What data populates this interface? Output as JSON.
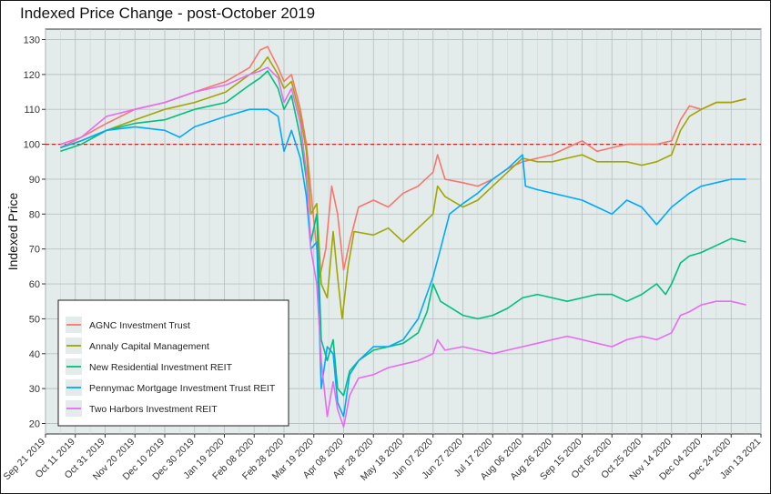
{
  "chart_data": {
    "type": "line",
    "title": "Indexed Price Change - post-October 2019",
    "xlabel": "",
    "ylabel": "Indexed Price",
    "ylim": [
      17,
      133
    ],
    "xlim": [
      "2019-09-21",
      "2021-01-13"
    ],
    "grid": true,
    "legend_position": "bottom-left",
    "reference_line": {
      "y": 100,
      "color": "#cc2222",
      "style": "dashed"
    },
    "y_ticks": [
      20,
      30,
      40,
      50,
      60,
      70,
      80,
      90,
      100,
      110,
      120,
      130
    ],
    "x_ticks": [
      "2019-09-21",
      "2019-10-11",
      "2019-10-31",
      "2019-11-20",
      "2019-12-10",
      "2019-12-30",
      "2020-01-19",
      "2020-02-08",
      "2020-02-28",
      "2020-03-19",
      "2020-04-08",
      "2020-04-28",
      "2020-05-18",
      "2020-06-07",
      "2020-06-27",
      "2020-07-17",
      "2020-08-06",
      "2020-08-26",
      "2020-09-15",
      "2020-10-05",
      "2020-10-25",
      "2020-11-14",
      "2020-12-04",
      "2020-12-24",
      "2021-01-13"
    ],
    "x_tick_labels": [
      "Sep 21 2019",
      "Oct 11 2019",
      "Oct 31 2019",
      "Nov 20 2019",
      "Dec 10 2019",
      "Dec 30 2019",
      "Jan 19 2020",
      "Feb 08 2020",
      "Feb 28 2020",
      "Mar 19 2020",
      "Apr 08 2020",
      "Apr 28 2020",
      "May 18 2020",
      "Jun 07 2020",
      "Jun 27 2020",
      "Jul 17 2020",
      "Aug 06 2020",
      "Aug 26 2020",
      "Sep 15 2020",
      "Oct 05 2020",
      "Oct 25 2020",
      "Nov 14 2020",
      "Dec 04 2020",
      "Dec 24 2020",
      "Jan 13 2021"
    ],
    "series": [
      {
        "name": "AGNC Investment Trust",
        "color": "#f8766d",
        "points": [
          [
            "2019-10-01",
            99
          ],
          [
            "2019-10-15",
            102
          ],
          [
            "2019-11-01",
            106
          ],
          [
            "2019-11-20",
            110
          ],
          [
            "2019-12-10",
            112
          ],
          [
            "2019-12-30",
            115
          ],
          [
            "2020-01-20",
            118
          ],
          [
            "2020-02-05",
            122
          ],
          [
            "2020-02-12",
            127
          ],
          [
            "2020-02-17",
            128
          ],
          [
            "2020-02-24",
            122
          ],
          [
            "2020-02-28",
            118
          ],
          [
            "2020-03-04",
            120
          ],
          [
            "2020-03-10",
            110
          ],
          [
            "2020-03-14",
            100
          ],
          [
            "2020-03-19",
            78
          ],
          [
            "2020-03-23",
            62
          ],
          [
            "2020-03-27",
            70
          ],
          [
            "2020-03-31",
            88
          ],
          [
            "2020-04-04",
            80
          ],
          [
            "2020-04-08",
            64
          ],
          [
            "2020-04-12",
            72
          ],
          [
            "2020-04-18",
            82
          ],
          [
            "2020-04-28",
            84
          ],
          [
            "2020-05-08",
            82
          ],
          [
            "2020-05-18",
            86
          ],
          [
            "2020-05-28",
            88
          ],
          [
            "2020-06-07",
            92
          ],
          [
            "2020-06-10",
            97
          ],
          [
            "2020-06-15",
            90
          ],
          [
            "2020-06-27",
            89
          ],
          [
            "2020-07-07",
            88
          ],
          [
            "2020-07-17",
            90
          ],
          [
            "2020-07-27",
            93
          ],
          [
            "2020-08-06",
            95
          ],
          [
            "2020-08-16",
            96
          ],
          [
            "2020-08-26",
            97
          ],
          [
            "2020-09-05",
            99
          ],
          [
            "2020-09-15",
            101
          ],
          [
            "2020-09-25",
            98
          ],
          [
            "2020-10-05",
            99
          ],
          [
            "2020-10-15",
            100
          ],
          [
            "2020-10-25",
            100
          ],
          [
            "2020-11-04",
            100
          ],
          [
            "2020-11-14",
            101
          ],
          [
            "2020-11-20",
            107
          ],
          [
            "2020-11-26",
            111
          ],
          [
            "2020-12-04",
            110
          ],
          [
            "2020-12-14",
            112
          ],
          [
            "2020-12-24",
            112
          ],
          [
            "2021-01-03",
            113
          ]
        ]
      },
      {
        "name": "Annaly Capital Management",
        "color": "#a3a500",
        "points": [
          [
            "2019-10-01",
            99
          ],
          [
            "2019-10-15",
            101
          ],
          [
            "2019-11-01",
            104
          ],
          [
            "2019-11-20",
            107
          ],
          [
            "2019-12-10",
            110
          ],
          [
            "2019-12-30",
            112
          ],
          [
            "2020-01-20",
            115
          ],
          [
            "2020-02-05",
            120
          ],
          [
            "2020-02-12",
            122
          ],
          [
            "2020-02-17",
            125
          ],
          [
            "2020-02-24",
            120
          ],
          [
            "2020-02-28",
            116
          ],
          [
            "2020-03-04",
            118
          ],
          [
            "2020-03-10",
            108
          ],
          [
            "2020-03-14",
            98
          ],
          [
            "2020-03-17",
            80
          ],
          [
            "2020-03-21",
            83
          ],
          [
            "2020-03-24",
            60
          ],
          [
            "2020-03-28",
            56
          ],
          [
            "2020-04-01",
            75
          ],
          [
            "2020-04-04",
            62
          ],
          [
            "2020-04-07",
            50
          ],
          [
            "2020-04-11",
            65
          ],
          [
            "2020-04-15",
            75
          ],
          [
            "2020-04-28",
            74
          ],
          [
            "2020-05-08",
            76
          ],
          [
            "2020-05-18",
            72
          ],
          [
            "2020-05-28",
            76
          ],
          [
            "2020-06-07",
            80
          ],
          [
            "2020-06-10",
            88
          ],
          [
            "2020-06-15",
            85
          ],
          [
            "2020-06-27",
            82
          ],
          [
            "2020-07-07",
            84
          ],
          [
            "2020-07-17",
            88
          ],
          [
            "2020-07-27",
            92
          ],
          [
            "2020-08-06",
            96
          ],
          [
            "2020-08-16",
            95
          ],
          [
            "2020-08-26",
            95
          ],
          [
            "2020-09-05",
            96
          ],
          [
            "2020-09-15",
            97
          ],
          [
            "2020-09-25",
            95
          ],
          [
            "2020-10-05",
            95
          ],
          [
            "2020-10-15",
            95
          ],
          [
            "2020-10-25",
            94
          ],
          [
            "2020-11-04",
            95
          ],
          [
            "2020-11-14",
            97
          ],
          [
            "2020-11-20",
            104
          ],
          [
            "2020-11-26",
            108
          ],
          [
            "2020-12-04",
            110
          ],
          [
            "2020-12-14",
            112
          ],
          [
            "2020-12-24",
            112
          ],
          [
            "2021-01-03",
            113
          ]
        ]
      },
      {
        "name": "New Residential Investment REIT",
        "color": "#00bf7d",
        "points": [
          [
            "2019-10-01",
            98
          ],
          [
            "2019-10-15",
            100
          ],
          [
            "2019-11-01",
            104
          ],
          [
            "2019-11-20",
            106
          ],
          [
            "2019-12-10",
            107
          ],
          [
            "2019-12-30",
            110
          ],
          [
            "2020-01-20",
            112
          ],
          [
            "2020-02-05",
            117
          ],
          [
            "2020-02-12",
            119
          ],
          [
            "2020-02-17",
            121
          ],
          [
            "2020-02-24",
            116
          ],
          [
            "2020-02-28",
            110
          ],
          [
            "2020-03-04",
            114
          ],
          [
            "2020-03-10",
            102
          ],
          [
            "2020-03-14",
            90
          ],
          [
            "2020-03-17",
            72
          ],
          [
            "2020-03-21",
            80
          ],
          [
            "2020-03-24",
            44
          ],
          [
            "2020-03-28",
            38
          ],
          [
            "2020-04-01",
            44
          ],
          [
            "2020-04-04",
            30
          ],
          [
            "2020-04-08",
            28
          ],
          [
            "2020-04-12",
            35
          ],
          [
            "2020-04-18",
            38
          ],
          [
            "2020-04-28",
            41
          ],
          [
            "2020-05-08",
            42
          ],
          [
            "2020-05-18",
            43
          ],
          [
            "2020-05-28",
            46
          ],
          [
            "2020-06-03",
            52
          ],
          [
            "2020-06-07",
            60
          ],
          [
            "2020-06-12",
            55
          ],
          [
            "2020-06-27",
            51
          ],
          [
            "2020-07-07",
            50
          ],
          [
            "2020-07-17",
            51
          ],
          [
            "2020-07-27",
            53
          ],
          [
            "2020-08-06",
            56
          ],
          [
            "2020-08-16",
            57
          ],
          [
            "2020-08-26",
            56
          ],
          [
            "2020-09-05",
            55
          ],
          [
            "2020-09-15",
            56
          ],
          [
            "2020-09-25",
            57
          ],
          [
            "2020-10-05",
            57
          ],
          [
            "2020-10-15",
            55
          ],
          [
            "2020-10-25",
            57
          ],
          [
            "2020-11-04",
            60
          ],
          [
            "2020-11-10",
            57
          ],
          [
            "2020-11-14",
            60
          ],
          [
            "2020-11-20",
            66
          ],
          [
            "2020-11-26",
            68
          ],
          [
            "2020-12-04",
            69
          ],
          [
            "2020-12-14",
            71
          ],
          [
            "2020-12-24",
            73
          ],
          [
            "2021-01-03",
            72
          ]
        ]
      },
      {
        "name": "Pennymac Mortgage Investment Trust REIT",
        "color": "#00a9ff",
        "points": [
          [
            "2019-10-01",
            99
          ],
          [
            "2019-10-15",
            101
          ],
          [
            "2019-11-01",
            104
          ],
          [
            "2019-11-20",
            105
          ],
          [
            "2019-12-10",
            104
          ],
          [
            "2019-12-20",
            102
          ],
          [
            "2019-12-30",
            105
          ],
          [
            "2020-01-20",
            108
          ],
          [
            "2020-02-05",
            110
          ],
          [
            "2020-02-17",
            110
          ],
          [
            "2020-02-24",
            108
          ],
          [
            "2020-02-28",
            98
          ],
          [
            "2020-03-04",
            104
          ],
          [
            "2020-03-10",
            96
          ],
          [
            "2020-03-14",
            85
          ],
          [
            "2020-03-17",
            70
          ],
          [
            "2020-03-21",
            72
          ],
          [
            "2020-03-24",
            30
          ],
          [
            "2020-03-28",
            42
          ],
          [
            "2020-04-01",
            40
          ],
          [
            "2020-04-04",
            26
          ],
          [
            "2020-04-08",
            22
          ],
          [
            "2020-04-12",
            34
          ],
          [
            "2020-04-18",
            38
          ],
          [
            "2020-04-28",
            42
          ],
          [
            "2020-05-08",
            42
          ],
          [
            "2020-05-18",
            44
          ],
          [
            "2020-05-28",
            50
          ],
          [
            "2020-06-07",
            62
          ],
          [
            "2020-06-12",
            70
          ],
          [
            "2020-06-18",
            80
          ],
          [
            "2020-06-27",
            83
          ],
          [
            "2020-07-07",
            86
          ],
          [
            "2020-07-17",
            90
          ],
          [
            "2020-07-27",
            93
          ],
          [
            "2020-08-06",
            97
          ],
          [
            "2020-08-08",
            88
          ],
          [
            "2020-08-16",
            87
          ],
          [
            "2020-08-26",
            86
          ],
          [
            "2020-09-05",
            85
          ],
          [
            "2020-09-15",
            84
          ],
          [
            "2020-09-25",
            82
          ],
          [
            "2020-10-05",
            80
          ],
          [
            "2020-10-15",
            84
          ],
          [
            "2020-10-25",
            82
          ],
          [
            "2020-11-04",
            77
          ],
          [
            "2020-11-14",
            82
          ],
          [
            "2020-11-20",
            84
          ],
          [
            "2020-11-26",
            86
          ],
          [
            "2020-12-04",
            88
          ],
          [
            "2020-12-14",
            89
          ],
          [
            "2020-12-24",
            90
          ],
          [
            "2021-01-03",
            90
          ]
        ]
      },
      {
        "name": "Two Harbors Investment REIT",
        "color": "#e76bf3",
        "points": [
          [
            "2019-10-01",
            100
          ],
          [
            "2019-10-15",
            102
          ],
          [
            "2019-11-01",
            108
          ],
          [
            "2019-11-20",
            110
          ],
          [
            "2019-12-10",
            112
          ],
          [
            "2019-12-30",
            115
          ],
          [
            "2020-01-20",
            117
          ],
          [
            "2020-02-05",
            120
          ],
          [
            "2020-02-12",
            121
          ],
          [
            "2020-02-17",
            122
          ],
          [
            "2020-02-24",
            119
          ],
          [
            "2020-02-28",
            112
          ],
          [
            "2020-03-04",
            116
          ],
          [
            "2020-03-10",
            106
          ],
          [
            "2020-03-14",
            92
          ],
          [
            "2020-03-17",
            70
          ],
          [
            "2020-03-21",
            60
          ],
          [
            "2020-03-24",
            38
          ],
          [
            "2020-03-28",
            22
          ],
          [
            "2020-04-01",
            32
          ],
          [
            "2020-04-04",
            24
          ],
          [
            "2020-04-08",
            19
          ],
          [
            "2020-04-12",
            28
          ],
          [
            "2020-04-18",
            33
          ],
          [
            "2020-04-28",
            34
          ],
          [
            "2020-05-08",
            36
          ],
          [
            "2020-05-18",
            37
          ],
          [
            "2020-05-28",
            38
          ],
          [
            "2020-06-07",
            40
          ],
          [
            "2020-06-10",
            44
          ],
          [
            "2020-06-15",
            41
          ],
          [
            "2020-06-27",
            42
          ],
          [
            "2020-07-07",
            41
          ],
          [
            "2020-07-17",
            40
          ],
          [
            "2020-07-27",
            41
          ],
          [
            "2020-08-06",
            42
          ],
          [
            "2020-08-16",
            43
          ],
          [
            "2020-08-26",
            44
          ],
          [
            "2020-09-05",
            45
          ],
          [
            "2020-09-15",
            44
          ],
          [
            "2020-09-25",
            43
          ],
          [
            "2020-10-05",
            42
          ],
          [
            "2020-10-15",
            44
          ],
          [
            "2020-10-25",
            45
          ],
          [
            "2020-11-04",
            44
          ],
          [
            "2020-11-14",
            46
          ],
          [
            "2020-11-20",
            51
          ],
          [
            "2020-11-26",
            52
          ],
          [
            "2020-12-04",
            54
          ],
          [
            "2020-12-14",
            55
          ],
          [
            "2020-12-24",
            55
          ],
          [
            "2021-01-03",
            54
          ]
        ]
      }
    ]
  }
}
